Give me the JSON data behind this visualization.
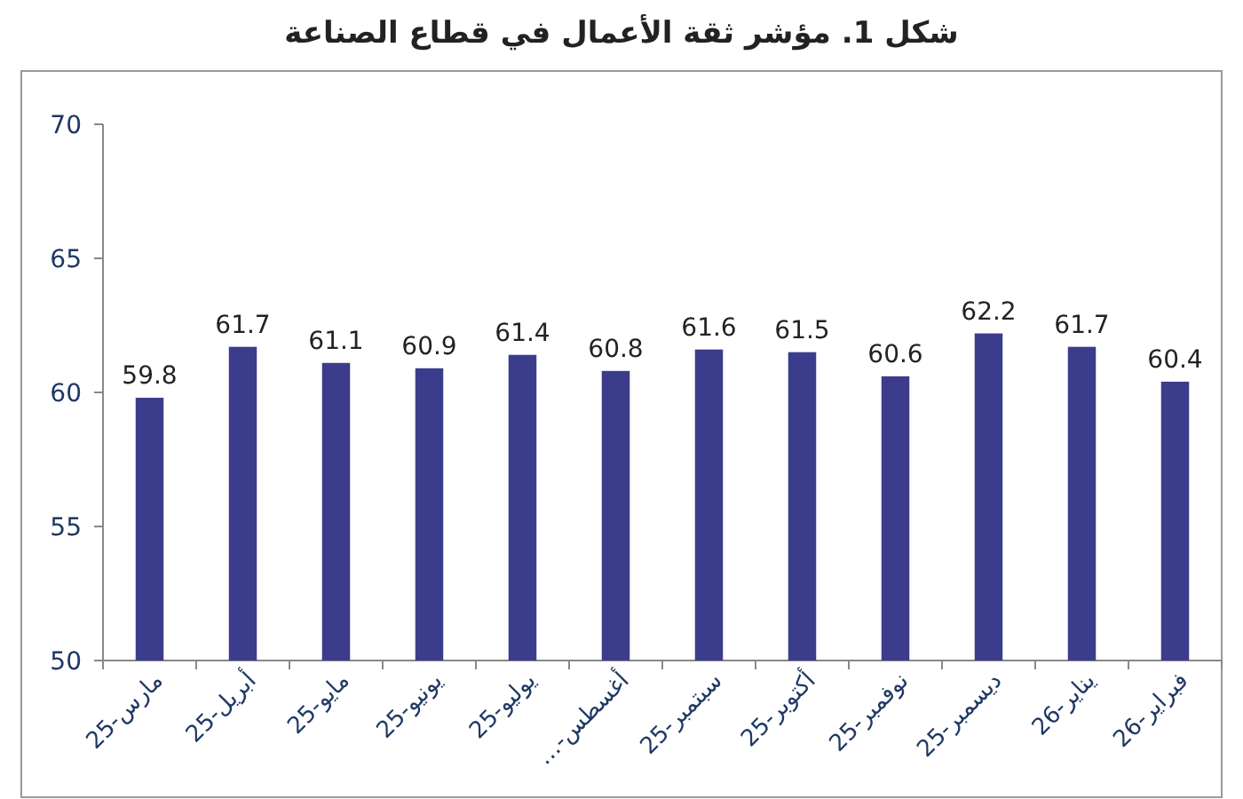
{
  "chart_data": {
    "type": "bar",
    "title": "شكل 1. مؤشر ثقة الأعمال في قطاع الصناعة",
    "categories": [
      "مارس-25",
      "أبريل-25",
      "مايو-25",
      "يونيو-25",
      "يوليو-25",
      "أغسطس-…",
      "سبتمبر-25",
      "أكتوبر-25",
      "نوفمبر-25",
      "ديسمبر-25",
      "يناير-26",
      "فبراير-26"
    ],
    "values": [
      59.8,
      61.7,
      61.1,
      60.9,
      61.4,
      60.8,
      61.6,
      61.5,
      60.6,
      62.2,
      61.7,
      60.4
    ],
    "color": "#3c3c8c",
    "ylim": [
      50,
      70
    ],
    "yticks": [
      50,
      55,
      60,
      65,
      70
    ],
    "grid": false,
    "data_labels": true
  }
}
